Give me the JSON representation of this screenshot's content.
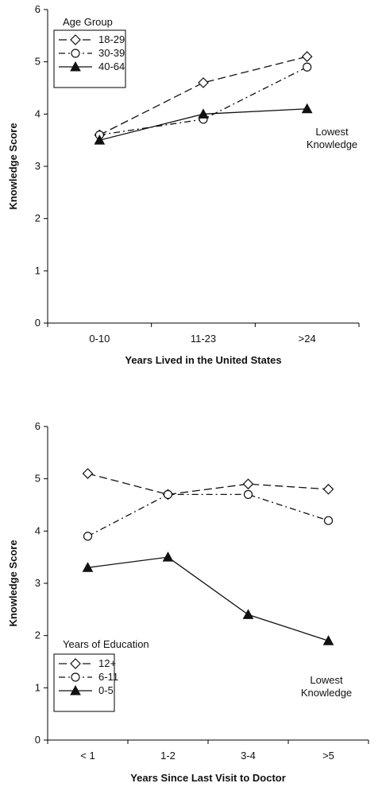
{
  "chart_data": [
    {
      "type": "line",
      "title": "",
      "xlabel": "Years Lived in the United States",
      "ylabel": "Knowledge Score",
      "categories": [
        "0-10",
        "11-23",
        ">24"
      ],
      "ylim": [
        0,
        6
      ],
      "yticks": [
        0,
        1,
        2,
        3,
        4,
        5,
        6
      ],
      "grid": false,
      "legend": {
        "title": "Age Group",
        "placement": "top-left"
      },
      "series": [
        {
          "name": "18-29",
          "values": [
            3.6,
            4.6,
            5.1
          ],
          "marker": "diamond",
          "line": "long-dash"
        },
        {
          "name": "30-39",
          "values": [
            3.6,
            3.9,
            4.9
          ],
          "marker": "circle",
          "line": "dash-dot"
        },
        {
          "name": "40-64",
          "values": [
            3.5,
            4.0,
            4.1
          ],
          "marker": "triangle",
          "line": "solid"
        }
      ],
      "annotation": [
        "Lowest",
        "Knowledge"
      ]
    },
    {
      "type": "line",
      "title": "",
      "xlabel": "Years Since Last Visit to Doctor",
      "ylabel": "Knowledge Score",
      "categories": [
        "< 1",
        "1-2",
        "3-4",
        ">5"
      ],
      "ylim": [
        0,
        6
      ],
      "yticks": [
        0,
        1,
        2,
        3,
        4,
        5,
        6
      ],
      "grid": false,
      "legend": {
        "title": "Years of Education",
        "placement": "bottom-left"
      },
      "series": [
        {
          "name": "12+",
          "values": [
            5.1,
            4.7,
            4.9,
            4.8
          ],
          "marker": "diamond",
          "line": "long-dash"
        },
        {
          "name": "6-11",
          "values": [
            3.9,
            4.7,
            4.7,
            4.2
          ],
          "marker": "circle",
          "line": "dash-dot"
        },
        {
          "name": "0-5",
          "values": [
            3.3,
            3.5,
            2.4,
            1.9
          ],
          "marker": "triangle",
          "line": "solid"
        }
      ],
      "annotation": [
        "Lowest",
        "Knowledge"
      ]
    }
  ],
  "colors": {
    "ink": "#111111",
    "marker_fill": "#ffffff",
    "axis": "#000000"
  }
}
